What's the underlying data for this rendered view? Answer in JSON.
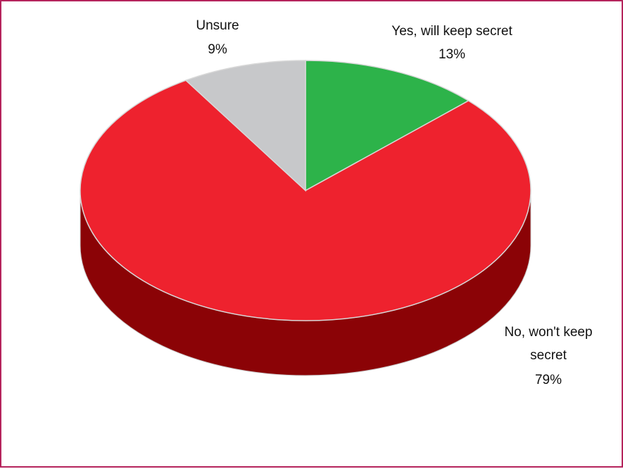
{
  "chart_data": {
    "type": "pie",
    "style": "3d",
    "title": "",
    "slices": [
      {
        "label": "Yes, will keep secret",
        "value": 13,
        "value_label": "13%",
        "color": "#2db34a",
        "side_color": "#1d7a31"
      },
      {
        "label": "No, won't keep secret",
        "value": 79,
        "value_label": "79%",
        "color": "#ee222e",
        "side_color": "#8b0306"
      },
      {
        "label": "Unsure",
        "value": 9,
        "value_label": "9%",
        "color": "#c7c8ca",
        "side_color": "#8e8f91"
      }
    ]
  }
}
